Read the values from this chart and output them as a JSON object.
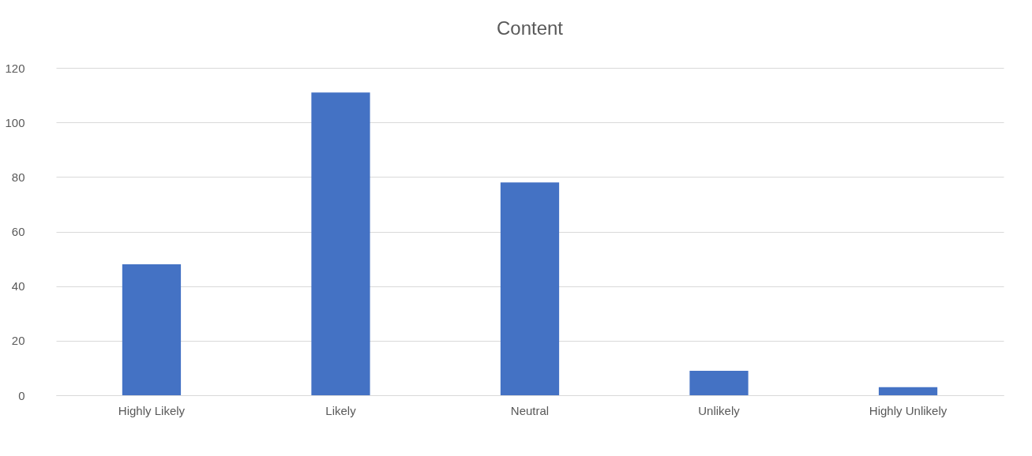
{
  "chart_data": {
    "type": "bar",
    "title": "Content",
    "categories": [
      "Highly Likely",
      "Likely",
      "Neutral",
      "Unlikely",
      "Highly Unlikely"
    ],
    "values": [
      48,
      111,
      78,
      9,
      3
    ],
    "color": "#4472c4",
    "ylim": [
      0,
      120
    ],
    "yticks": [
      0,
      20,
      40,
      60,
      80,
      100,
      120
    ],
    "grid": "y"
  }
}
